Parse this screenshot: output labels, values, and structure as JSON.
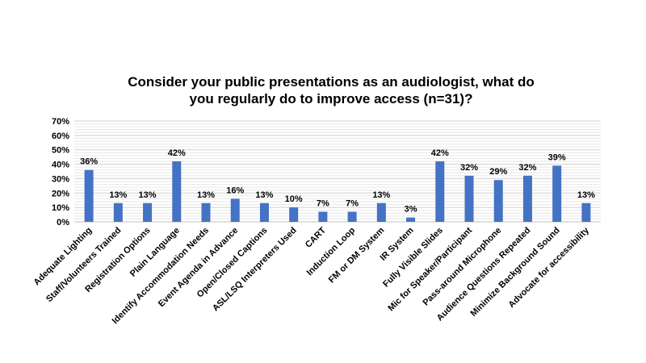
{
  "chart_data": {
    "type": "bar",
    "title_lines": [
      "Consider your public presentations as an audiologist, what do",
      "you regularly do to improve access (n=31)?"
    ],
    "categories": [
      "Adequate Lighting",
      "Staff/Volunteers Trained",
      "Registration Options",
      "Plain Language",
      "Identify Accommodation Needs",
      "Event Agenda in Advance",
      "Open/Closed Captions",
      "ASL/LSQ Interpreters Used",
      "CART",
      "Induction Loop",
      "FM or DM System",
      "IR System",
      "Fully Visible Slides",
      "Mic for Speaker/Participant",
      "Pass-around Microphone",
      "Audience Questions Repeated",
      "Minimize Background Sound",
      "Advocate for accessibility"
    ],
    "values": [
      36,
      13,
      13,
      42,
      13,
      16,
      13,
      10,
      7,
      7,
      13,
      3,
      42,
      32,
      29,
      32,
      39,
      13
    ],
    "data_labels": [
      "36%",
      "13%",
      "13%",
      "42%",
      "13%",
      "16%",
      "13%",
      "10%",
      "7%",
      "7%",
      "13%",
      "3%",
      "42%",
      "32%",
      "29%",
      "32%",
      "39%",
      "13%"
    ],
    "y_ticks": [
      "0%",
      "10%",
      "20%",
      "30%",
      "40%",
      "50%",
      "60%",
      "70%"
    ],
    "ylim": [
      0,
      70
    ],
    "grid": true,
    "bar_color": "#4472C4"
  }
}
